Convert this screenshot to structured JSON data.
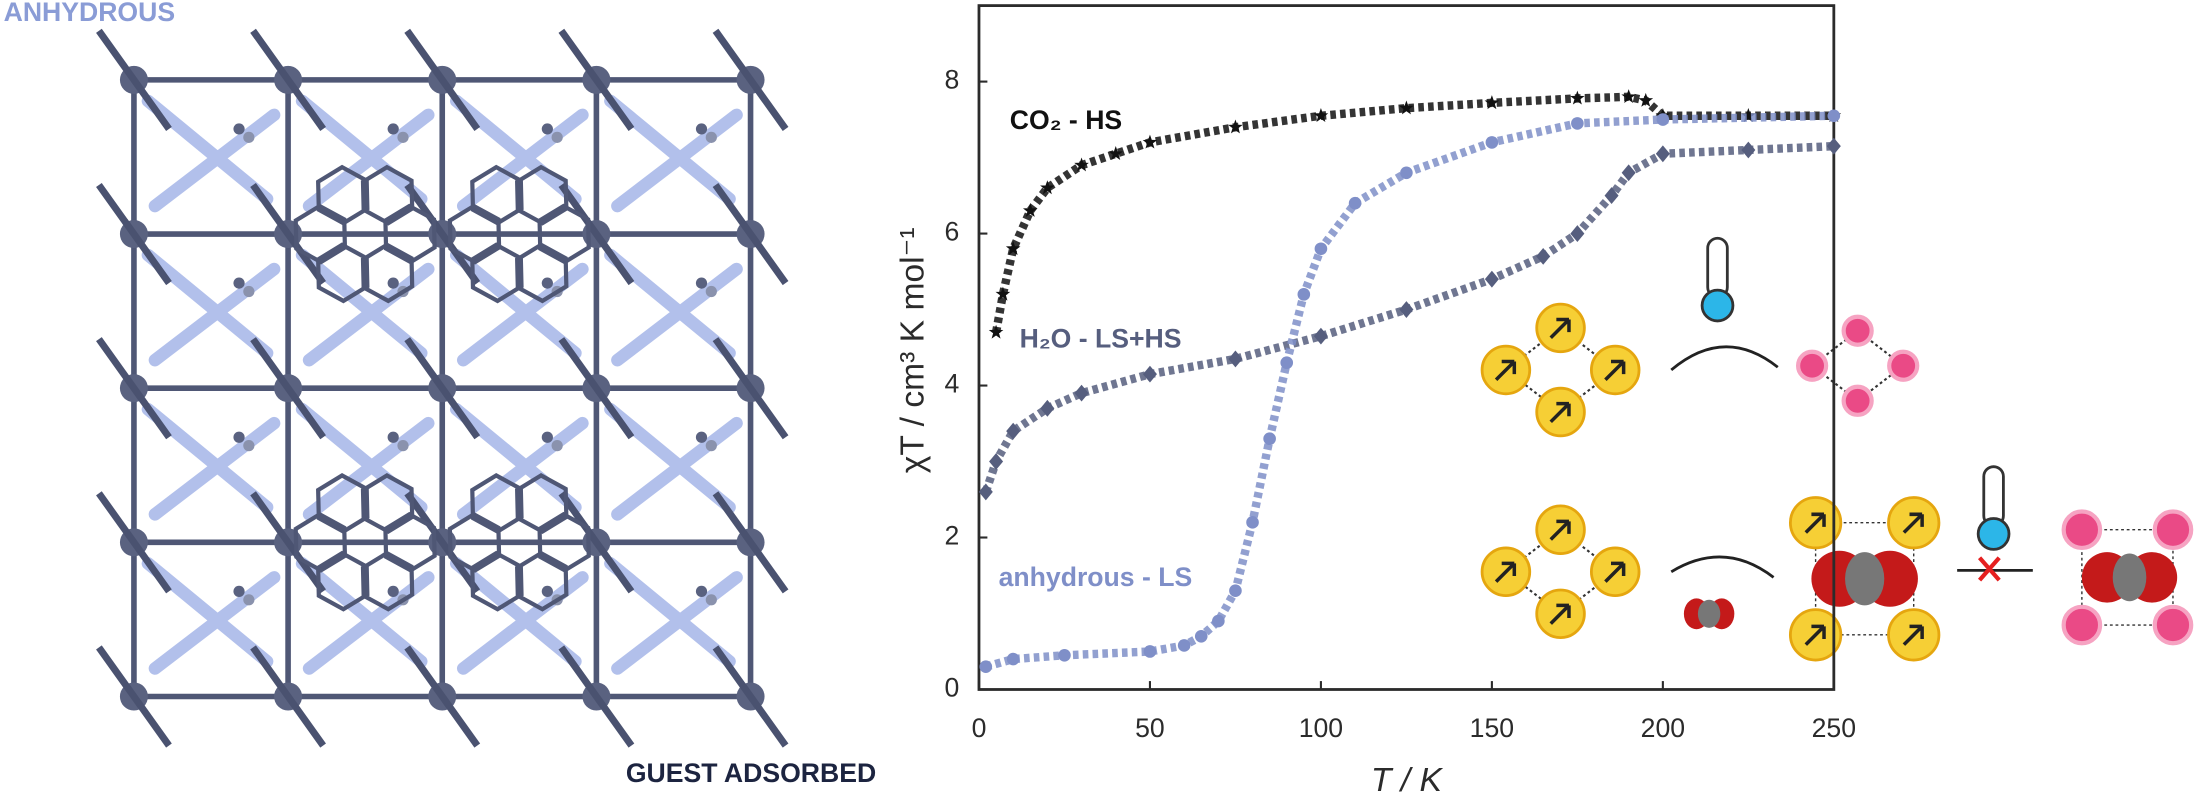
{
  "chart_data": {
    "type": "scatter",
    "x_label": "T / K",
    "y_label": "χT / cm³ K mol⁻¹",
    "xlim": [
      0,
      250
    ],
    "ylim": [
      0,
      9
    ],
    "xticks": [
      0,
      50,
      100,
      150,
      200,
      250
    ],
    "yticks": [
      0,
      2,
      4,
      6,
      8
    ],
    "series": [
      {
        "name": "CO₂ - HS",
        "color": "#111111",
        "marker": "star",
        "x": [
          5,
          7,
          10,
          15,
          20,
          30,
          40,
          50,
          75,
          100,
          125,
          150,
          175,
          190,
          195,
          200,
          225,
          250
        ],
        "values": [
          4.7,
          5.2,
          5.8,
          6.3,
          6.6,
          6.9,
          7.05,
          7.2,
          7.4,
          7.55,
          7.65,
          7.72,
          7.78,
          7.8,
          7.75,
          7.55,
          7.55,
          7.55
        ]
      },
      {
        "name": "H₂O - LS+HS",
        "color": "#565e7e",
        "marker": "diamond",
        "x": [
          2,
          5,
          10,
          20,
          30,
          50,
          75,
          100,
          125,
          150,
          165,
          175,
          185,
          190,
          200,
          225,
          250
        ],
        "values": [
          2.6,
          3.0,
          3.4,
          3.7,
          3.9,
          4.15,
          4.35,
          4.65,
          5.0,
          5.4,
          5.7,
          6.0,
          6.5,
          6.8,
          7.05,
          7.1,
          7.15
        ]
      },
      {
        "name": "anhydrous - LS",
        "color": "#7f8fc8",
        "marker": "circle",
        "x": [
          2,
          10,
          25,
          50,
          60,
          65,
          70,
          75,
          80,
          85,
          90,
          95,
          100,
          110,
          125,
          150,
          175,
          200,
          250
        ],
        "values": [
          0.3,
          0.4,
          0.45,
          0.5,
          0.58,
          0.7,
          0.9,
          1.3,
          2.2,
          3.3,
          4.3,
          5.2,
          5.8,
          6.4,
          6.8,
          7.2,
          7.45,
          7.5,
          7.55
        ]
      }
    ]
  },
  "figure": {
    "top_label": "ANHYDROUS",
    "bottom_label": "GUEST ADSORBED"
  }
}
